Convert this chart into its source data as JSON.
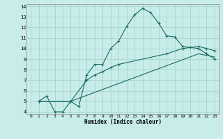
{
  "xlabel": "Humidex (Indice chaleur)",
  "ylabel": "",
  "bg_color": "#c8ece9",
  "grid_color": "#a8d8d4",
  "line_color": "#1a6b60",
  "xlim": [
    -0.5,
    23.5
  ],
  "ylim": [
    3.8,
    14.2
  ],
  "yticks": [
    4,
    5,
    6,
    7,
    8,
    9,
    10,
    11,
    12,
    13,
    14
  ],
  "xticks": [
    0,
    1,
    2,
    3,
    4,
    5,
    6,
    7,
    8,
    9,
    10,
    11,
    12,
    13,
    14,
    15,
    16,
    17,
    18,
    19,
    20,
    21,
    22,
    23
  ],
  "line1_x": [
    1,
    2,
    3,
    4,
    5,
    6,
    7,
    8,
    9,
    10,
    11,
    12,
    13,
    14,
    15,
    16,
    17,
    18,
    19,
    20,
    21,
    22,
    23
  ],
  "line1_y": [
    5.0,
    5.5,
    4.0,
    4.0,
    5.0,
    4.5,
    7.5,
    8.5,
    8.5,
    10.0,
    10.7,
    12.1,
    13.2,
    13.8,
    13.4,
    12.4,
    11.2,
    11.1,
    10.2,
    10.1,
    10.0,
    9.5,
    9.0
  ],
  "line2_x": [
    1,
    5,
    7,
    8,
    9,
    10,
    11,
    17,
    19,
    21,
    22,
    23
  ],
  "line2_y": [
    5.0,
    5.0,
    7.0,
    7.5,
    7.8,
    8.2,
    8.5,
    9.5,
    10.0,
    10.2,
    10.0,
    9.8
  ],
  "line3_x": [
    1,
    5,
    21,
    23
  ],
  "line3_y": [
    5.0,
    5.0,
    9.5,
    9.2
  ]
}
